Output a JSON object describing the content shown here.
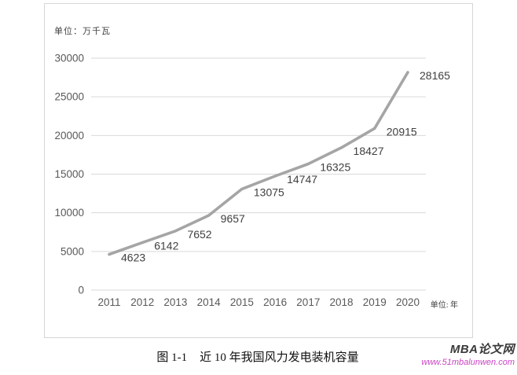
{
  "figure": {
    "caption_prefix": "图 1-1",
    "caption_title": "近 10 年我国风力发电装机容量"
  },
  "watermark": {
    "brand": "MBA论文网",
    "url": "www.51mbalunwen.com"
  },
  "chart_data": {
    "type": "line",
    "title": "",
    "y_unit_label": "单位：万千瓦",
    "x_unit_label": "单位: 年",
    "categories": [
      "2011",
      "2012",
      "2013",
      "2014",
      "2015",
      "2016",
      "2017",
      "2018",
      "2019",
      "2020"
    ],
    "values": [
      4623,
      6142,
      7652,
      9657,
      13075,
      14747,
      16325,
      18427,
      20915,
      28165
    ],
    "yticks": [
      0,
      5000,
      10000,
      15000,
      20000,
      25000,
      30000
    ],
    "ylim": [
      0,
      30000
    ],
    "grid": true,
    "legend": "none",
    "data_labels": true,
    "colors": {
      "line": "#a5a5a5",
      "grid": "#d9d9d9",
      "tick_label": "#595959",
      "data_label": "#404040",
      "panel_border": "#d6d6d6",
      "watermark_brand": "#3a3a3a",
      "watermark_url": "#c944c4"
    }
  }
}
